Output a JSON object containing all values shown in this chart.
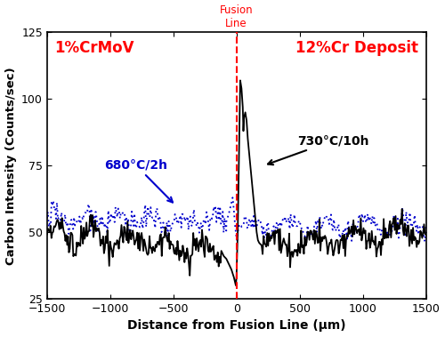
{
  "xlim": [
    -1500,
    1500
  ],
  "ylim": [
    25,
    125
  ],
  "xlabel": "Distance from Fusion Line (μm)",
  "ylabel": "Carbon Intensity (Counts/sec)",
  "xticks": [
    -1500,
    -1000,
    -500,
    0,
    500,
    1000,
    1500
  ],
  "yticks": [
    25,
    50,
    75,
    100,
    125
  ],
  "left_label": "1%CrMoV",
  "right_label": "12%Cr Deposit",
  "fusion_label_line1": "Fusion",
  "fusion_label_line2": "Line",
  "label_680": "680°C/2h",
  "label_730": "730°C/10h",
  "label_color_680": "#0000cc",
  "label_color_730": "#000000",
  "header_color": "#ff0000",
  "fusion_line_color": "#ff0000",
  "line_730_color": "#000000",
  "line_680_color": "#0000cc",
  "background_color": "#ffffff",
  "figsize": [
    5.0,
    3.79
  ],
  "dpi": 100
}
